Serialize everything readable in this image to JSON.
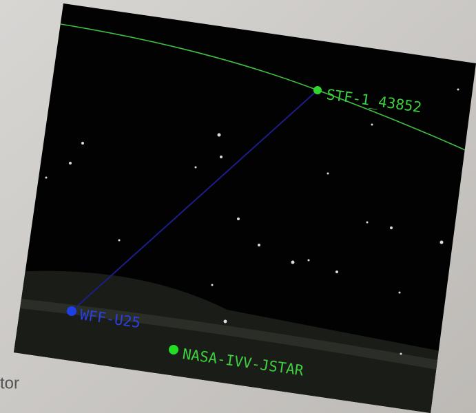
{
  "background_text": "tor",
  "satellite": {
    "label": "STF-1_43852"
  },
  "ground_stations": [
    {
      "label": "WFF-U25"
    },
    {
      "label": "NASA-IVV-JSTAR"
    }
  ]
}
